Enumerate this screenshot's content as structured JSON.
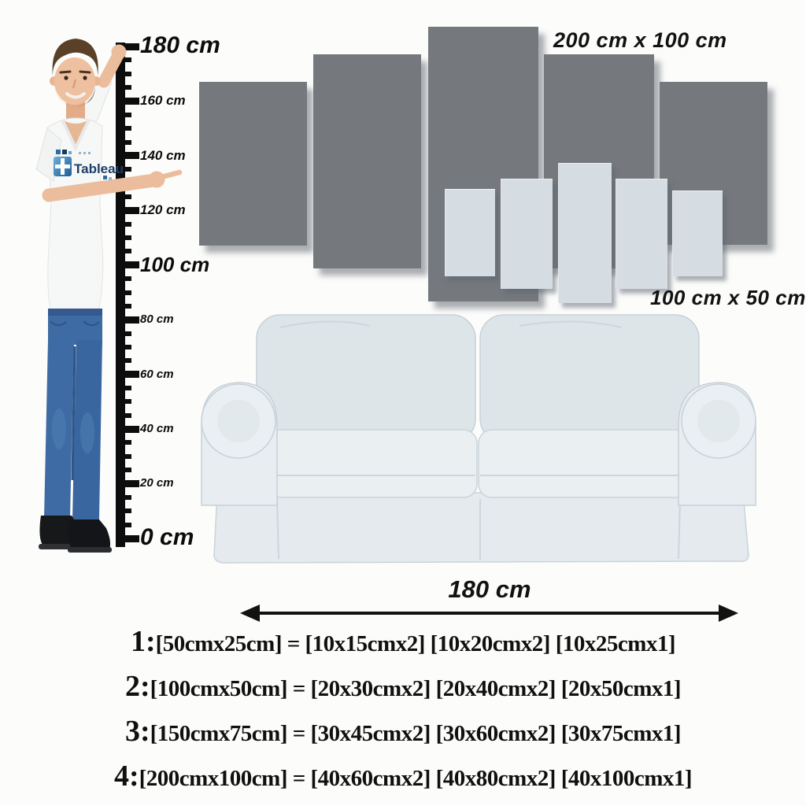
{
  "ruler": {
    "min_cm": 0,
    "max_cm": 180,
    "tick_step_cm": 5,
    "label_step_cm": 20,
    "labels": [
      {
        "text": "180 cm"
      },
      {
        "text": "160 cm"
      },
      {
        "text": "140 cm"
      },
      {
        "text": "120 cm"
      },
      {
        "text": "100 cm"
      },
      {
        "text": "80 cm"
      },
      {
        "text": "60 cm"
      },
      {
        "text": "40 cm"
      },
      {
        "text": "20 cm"
      },
      {
        "text": "0 cm"
      }
    ]
  },
  "panel_sets": {
    "large": {
      "label": "200 cm x 100 cm",
      "panel_count": 5,
      "color": "#75797e"
    },
    "small": {
      "label": "100 cm x 50 cm",
      "panel_count": 5,
      "color": "#d5dce2"
    }
  },
  "sofa": {
    "width_label": "180 cm"
  },
  "shirt_logo": {
    "text": "Tableau"
  },
  "size_options": [
    {
      "num": "1:",
      "text": "[50cmx25cm] = [10x15cmx2] [10x20cmx2] [10x25cmx1]"
    },
    {
      "num": "2:",
      "text": "[100cmx50cm] = [20x30cmx2] [20x40cmx2] [20x50cmx1]"
    },
    {
      "num": "3:",
      "text": "[150cmx75cm] = [30x45cmx2] [30x60cmx2] [30x75cmx1]"
    },
    {
      "num": "4:",
      "text": "[200cmx100cm] = [40x60cmx2] [40x80cmx2] [40x100cmx1]"
    }
  ]
}
